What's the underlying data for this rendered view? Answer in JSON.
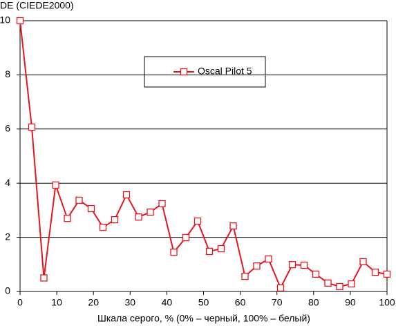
{
  "chart_data": {
    "type": "line",
    "y_label": "DE (CIEDE2000)",
    "x_label": "Шкала серого, % (0% – черный, 100% – белый)",
    "x": [
      0,
      3.2,
      6.5,
      9.7,
      12.9,
      16.1,
      19.4,
      22.6,
      25.8,
      29.0,
      32.3,
      35.5,
      38.7,
      41.9,
      45.2,
      48.4,
      51.6,
      54.8,
      58.1,
      61.3,
      64.5,
      67.7,
      71.0,
      74.2,
      77.4,
      80.6,
      83.9,
      87.1,
      90.3,
      93.5,
      96.8,
      100
    ],
    "series": [
      {
        "name": "Oscal Pilot 5",
        "color": "#e8141c",
        "values": [
          10.0,
          6.07,
          0.5,
          3.93,
          2.7,
          3.37,
          3.06,
          2.37,
          2.65,
          3.57,
          2.75,
          2.93,
          3.24,
          1.45,
          1.99,
          2.6,
          1.48,
          1.58,
          2.42,
          0.56,
          0.94,
          1.2,
          0.13,
          0.99,
          0.97,
          0.64,
          0.31,
          0.18,
          0.28,
          1.1,
          0.71,
          0.64
        ]
      }
    ],
    "xlim": [
      0,
      100
    ],
    "xticks": [
      0,
      10,
      20,
      30,
      40,
      50,
      60,
      70,
      80,
      90,
      100
    ],
    "ylim": [
      0,
      10
    ],
    "yticks": [
      0,
      2,
      4,
      6,
      8,
      10
    ],
    "grid": true
  }
}
